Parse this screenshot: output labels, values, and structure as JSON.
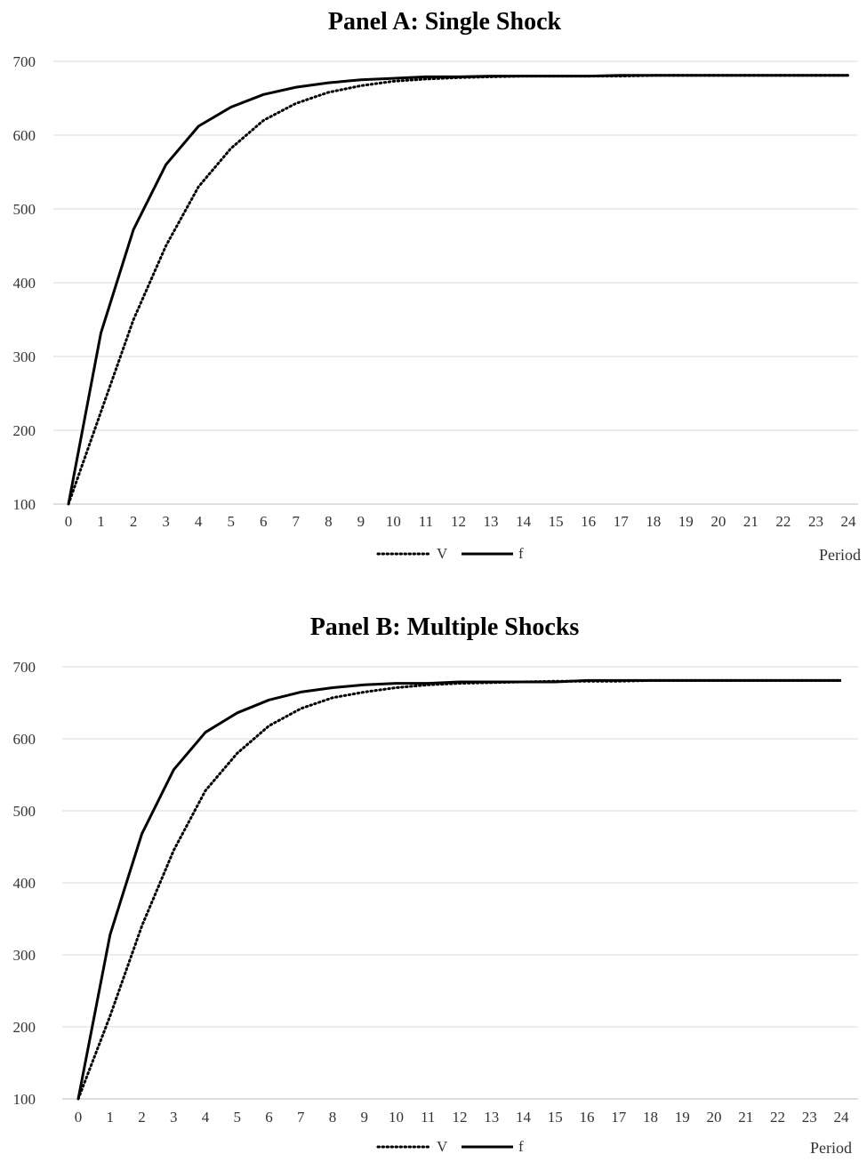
{
  "chart_data": [
    {
      "type": "line",
      "title": "Panel A: Single Shock",
      "xlabel": "Period",
      "ylabel": "",
      "ylim": [
        100,
        700
      ],
      "yticks": [
        100,
        200,
        300,
        400,
        500,
        600,
        700
      ],
      "categories": [
        "0",
        "1",
        "2",
        "3",
        "4",
        "5",
        "6",
        "7",
        "8",
        "9",
        "10",
        "11",
        "12",
        "13",
        "14",
        "15",
        "16",
        "17",
        "18",
        "19",
        "20",
        "21",
        "22",
        "23",
        "24"
      ],
      "grid": true,
      "legend_position": "bottom",
      "series": [
        {
          "name": "V",
          "style": "dotted",
          "color": "#000000",
          "values": [
            100,
            225,
            350,
            450,
            530,
            582,
            620,
            643,
            658,
            667,
            673,
            676,
            678,
            679,
            680,
            680,
            680,
            680,
            681,
            681,
            681,
            681,
            681,
            681,
            681
          ]
        },
        {
          "name": "f",
          "style": "solid",
          "color": "#000000",
          "values": [
            100,
            332,
            472,
            560,
            612,
            638,
            655,
            665,
            671,
            675,
            677,
            679,
            679,
            680,
            680,
            680,
            680,
            681,
            681,
            681,
            681,
            681,
            681,
            681,
            681
          ]
        }
      ]
    },
    {
      "type": "line",
      "title": "Panel B: Multiple Shocks",
      "xlabel": "Period",
      "ylabel": "",
      "ylim": [
        100,
        700
      ],
      "yticks": [
        100,
        200,
        300,
        400,
        500,
        600,
        700
      ],
      "categories": [
        "0",
        "1",
        "2",
        "3",
        "4",
        "5",
        "6",
        "7",
        "8",
        "9",
        "10",
        "11",
        "12",
        "13",
        "14",
        "15",
        "16",
        "17",
        "18",
        "19",
        "20",
        "21",
        "22",
        "23",
        "24"
      ],
      "grid": true,
      "legend_position": "bottom",
      "series": [
        {
          "name": "V",
          "style": "dotted",
          "color": "#000000",
          "values": [
            100,
            215,
            340,
            445,
            528,
            580,
            618,
            642,
            657,
            665,
            671,
            675,
            677,
            678,
            679,
            680,
            680,
            680,
            681,
            681,
            681,
            681,
            681,
            681,
            681
          ]
        },
        {
          "name": "f",
          "style": "solid",
          "color": "#000000",
          "values": [
            100,
            328,
            468,
            557,
            609,
            636,
            654,
            665,
            671,
            675,
            677,
            677,
            679,
            679,
            679,
            679,
            681,
            681,
            681,
            681,
            681,
            681,
            681,
            681,
            681
          ]
        }
      ]
    }
  ]
}
